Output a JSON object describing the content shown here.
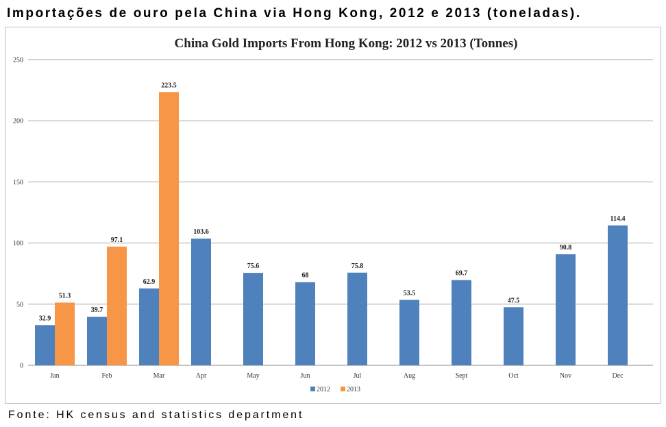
{
  "header": {
    "title": "Importações de ouro pela China via Hong Kong, 2012 e 2013 (toneladas)."
  },
  "footer": {
    "source": "Fonte: HK census and statistics department"
  },
  "chart_data": {
    "type": "bar",
    "title": "China Gold Imports From Hong Kong: 2012 vs 2013 (Tonnes)",
    "xlabel": "",
    "ylabel": "",
    "ylim": [
      0,
      250
    ],
    "yticks": [
      0,
      50,
      100,
      150,
      200,
      250
    ],
    "grid": true,
    "legend_position": "bottom",
    "categories": [
      "Jan",
      "Feb",
      "Mar",
      "Apr",
      "May",
      "Jun",
      "Jul",
      "Aug",
      "Sept",
      "Oct",
      "Nov",
      "Dec"
    ],
    "series": [
      {
        "name": "2012",
        "color": "#4f81bd",
        "values": [
          32.9,
          39.7,
          62.9,
          103.6,
          75.6,
          68,
          75.8,
          53.5,
          69.7,
          47.5,
          90.8,
          114.4
        ],
        "labels": [
          "32.9",
          "39.7",
          "62.9",
          "103.6",
          "75.6",
          "68",
          "75.8",
          "53.5",
          "69.7",
          "47.5",
          "90.8",
          "114.4"
        ]
      },
      {
        "name": "2013",
        "color": "#f79646",
        "values": [
          51.3,
          97.1,
          223.5,
          null,
          null,
          null,
          null,
          null,
          null,
          null,
          null,
          null
        ],
        "labels": [
          "51.3",
          "97.1",
          "223.5",
          null,
          null,
          null,
          null,
          null,
          null,
          null,
          null,
          null
        ]
      }
    ]
  }
}
